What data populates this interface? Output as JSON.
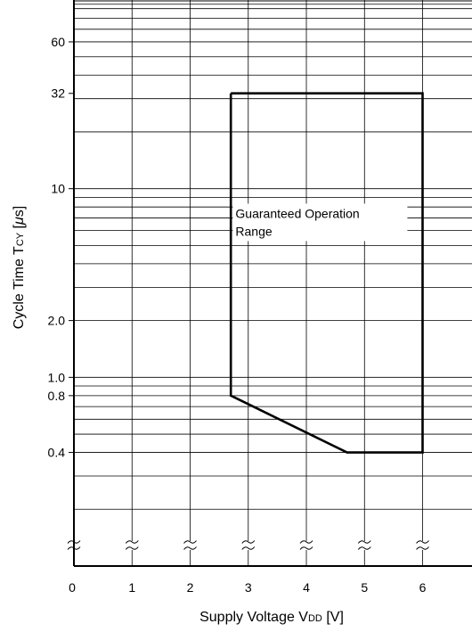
{
  "chart_data": {
    "type": "line",
    "title": "",
    "xlabel": "Supply Voltage  V",
    "xlabel_sub": "DD",
    "xlabel_unit": " [V]",
    "ylabel": "Cycle Time  T",
    "ylabel_sub": "CY",
    "ylabel_unit": " [",
    "ylabel_mu": "μ",
    "ylabel_end": "s]",
    "y_scale": "log",
    "xlim": [
      0,
      6.85
    ],
    "ylim": [
      0.1,
      100
    ],
    "x_tick_labels": [
      "0",
      "1",
      "2",
      "3",
      "4",
      "5",
      "6"
    ],
    "x_tick_values": [
      0,
      1,
      2,
      3,
      4,
      5,
      6
    ],
    "x_gridlines": [
      1,
      2,
      3,
      4,
      5,
      6
    ],
    "y_tick_labels": [
      "60",
      "32",
      "10",
      "2.0",
      "1.0",
      "0.8",
      "0.4"
    ],
    "y_tick_values": [
      60,
      32,
      10,
      2.0,
      1.0,
      0.8,
      0.4
    ],
    "y_gridlines": [
      0.2,
      0.3,
      0.4,
      0.5,
      0.6,
      0.7,
      0.8,
      0.9,
      1,
      2,
      3,
      4,
      5,
      6,
      7,
      8,
      9,
      10,
      20,
      30,
      40,
      50,
      60,
      70,
      80,
      90
    ],
    "axis_break_x": [
      0,
      1,
      2,
      3,
      4,
      5,
      6
    ],
    "grid": true,
    "series": [
      {
        "values": [
          {
            "x": 2.7,
            "y": 32
          },
          {
            "x": 6.0,
            "y": 32
          },
          {
            "x": 6.0,
            "y": 0.4
          },
          {
            "x": 4.7,
            "y": 0.4
          },
          {
            "x": 2.7,
            "y": 0.8
          },
          {
            "x": 2.7,
            "y": 32
          }
        ]
      }
    ],
    "annotation": {
      "lines": [
        "Guaranteed Operation",
        "Range"
      ],
      "at": {
        "x": 2.78,
        "y": 7.0
      }
    }
  }
}
